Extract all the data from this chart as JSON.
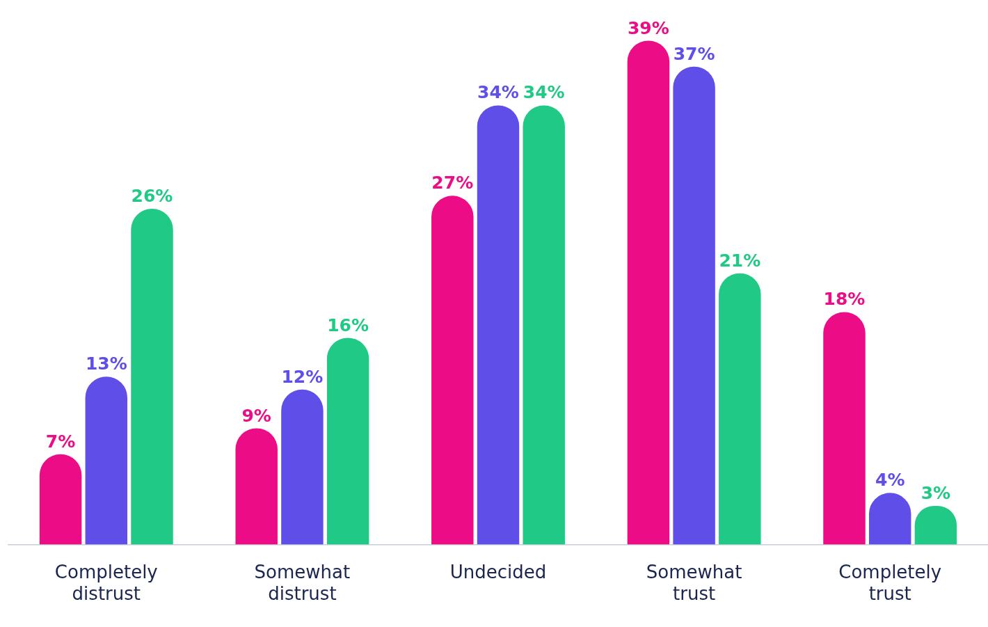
{
  "chart_data": {
    "type": "bar",
    "categories": [
      "Completely distrust",
      "Somewhat distrust",
      "Undecided",
      "Somewhat trust",
      "Completely trust"
    ],
    "series": [
      {
        "color": "#ec0c85",
        "values": [
          7,
          9,
          27,
          39,
          18
        ],
        "value_labels": [
          "7%",
          "9%",
          "27%",
          "39%",
          "18%"
        ]
      },
      {
        "color": "#5f4fe8",
        "values": [
          13,
          12,
          34,
          37,
          4
        ],
        "value_labels": [
          "13%",
          "12%",
          "34%",
          "37%",
          "4%"
        ]
      },
      {
        "color": "#20c985",
        "values": [
          26,
          16,
          34,
          21,
          3
        ],
        "value_labels": [
          "26%",
          "16%",
          "34%",
          "21%",
          "3%"
        ]
      }
    ],
    "grid": false,
    "legend": false,
    "tick_labels": "x"
  }
}
